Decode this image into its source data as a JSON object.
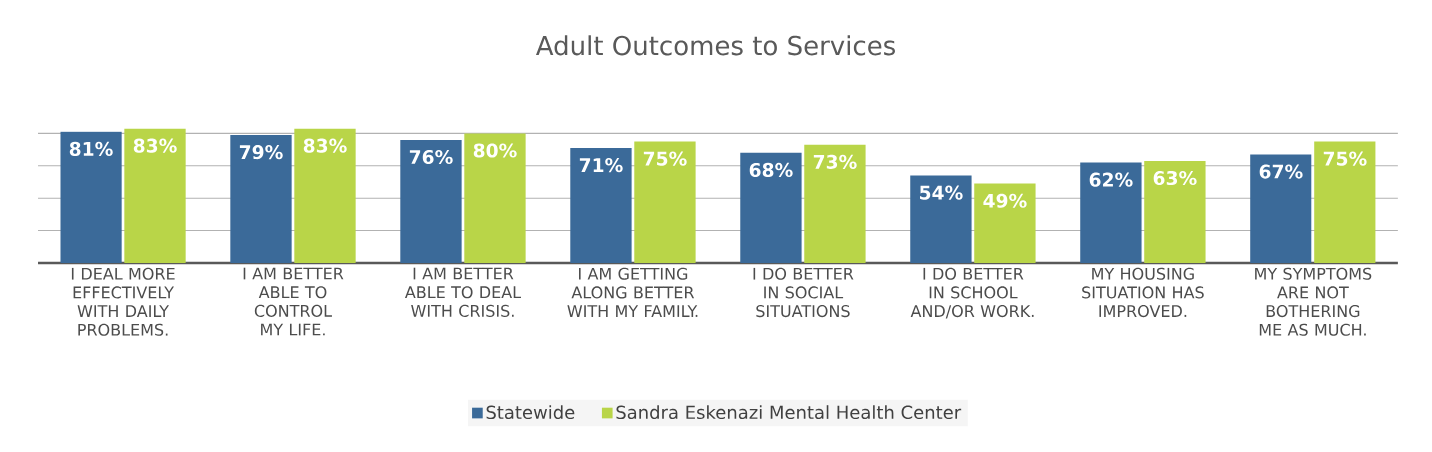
{
  "chart_data": {
    "type": "bar",
    "title": "Adult Outcomes to Services",
    "categories": [
      "I DEAL MORE EFFECTIVELY WITH DAILY PROBLEMS.",
      "I AM BETTER ABLE TO CONTROL MY LIFE.",
      "I AM BETTER ABLE TO DEAL WITH CRISIS.",
      "I AM GETTING ALONG BETTER WITH MY FAMILY.",
      "I DO BETTER IN SOCIAL SITUATIONS",
      "I DO BETTER IN SCHOOL AND/OR WORK.",
      "MY HOUSING SITUATION HAS IMPROVED.",
      "MY SYMPTOMS ARE NOT BOTHERING ME AS MUCH."
    ],
    "series": [
      {
        "name": "Statewide",
        "color": "#3b6a99",
        "values": [
          81,
          79,
          76,
          71,
          68,
          54,
          62,
          67
        ],
        "value_labels": [
          "81%",
          "79%",
          "76%",
          "71%",
          "68%",
          "54%",
          "62%",
          "67%"
        ]
      },
      {
        "name": "Sandra Eskenazi Mental Health Center",
        "color": "#b9d548",
        "values": [
          83,
          83,
          80,
          75,
          73,
          49,
          63,
          75
        ],
        "value_labels": [
          "83%",
          "83%",
          "80%",
          "75%",
          "73%",
          "49%",
          "63%",
          "75%"
        ]
      }
    ],
    "grid": "y",
    "legend": "bottom",
    "tick_labels": "x"
  }
}
